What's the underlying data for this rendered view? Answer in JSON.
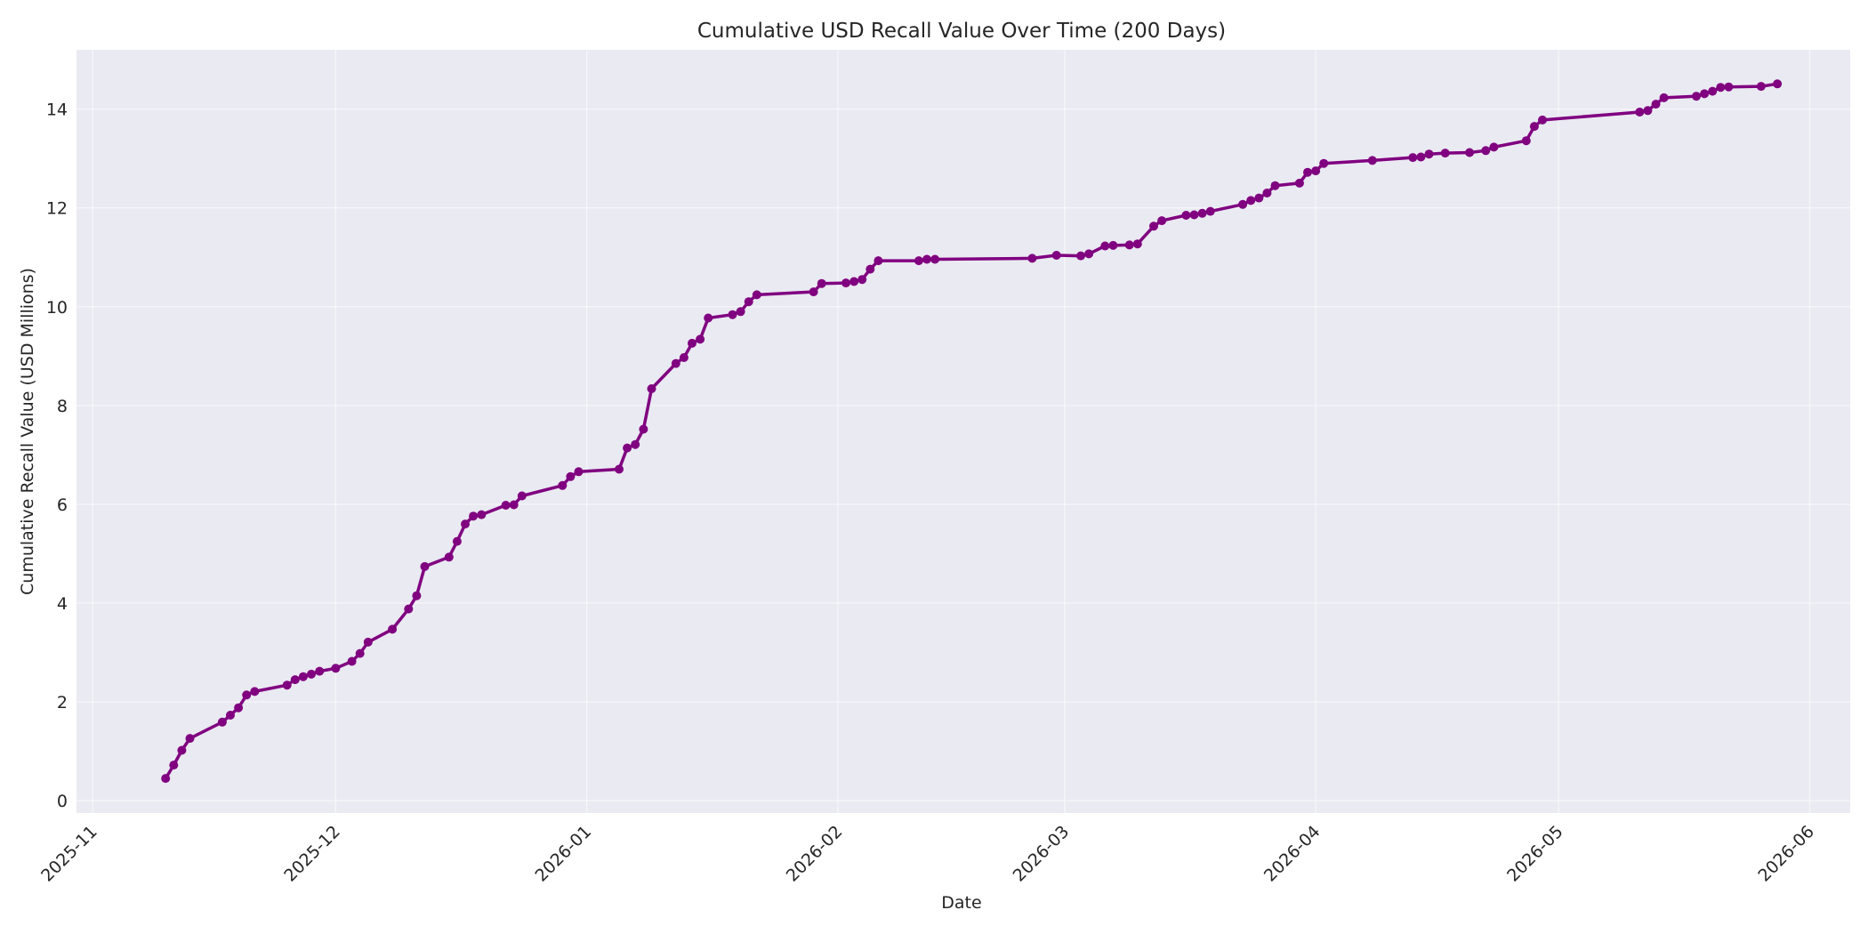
{
  "chart_data": {
    "type": "line",
    "title": "Cumulative USD Recall Value Over Time (200 Days)",
    "xlabel": "Date",
    "ylabel": "Cumulative Recall Value (USD Millions)",
    "grid": true,
    "colors": {
      "series": "#800080",
      "plot_background": "#eaeaf2",
      "grid": "#ffffff",
      "text": "#262626"
    },
    "xlim": [
      "2025-10-30",
      "2026-06-06"
    ],
    "ylim": [
      -0.25,
      15.2
    ],
    "x_ticks": [
      "2025-11",
      "2025-12",
      "2026-01",
      "2026-02",
      "2026-03",
      "2026-04",
      "2026-05",
      "2026-06"
    ],
    "y_ticks": [
      0,
      2,
      4,
      6,
      8,
      10,
      12,
      14
    ],
    "series": [
      {
        "x": [
          "2025-11-10",
          "2025-11-11",
          "2025-11-12",
          "2025-11-13",
          "2025-11-17",
          "2025-11-18",
          "2025-11-19",
          "2025-11-20",
          "2025-11-21",
          "2025-11-25",
          "2025-11-26",
          "2025-11-27",
          "2025-11-28",
          "2025-11-29",
          "2025-12-01",
          "2025-12-03",
          "2025-12-04",
          "2025-12-05",
          "2025-12-08",
          "2025-12-10",
          "2025-12-11",
          "2025-12-12",
          "2025-12-15",
          "2025-12-16",
          "2025-12-17",
          "2025-12-18",
          "2025-12-19",
          "2025-12-22",
          "2025-12-23",
          "2025-12-24",
          "2025-12-29",
          "2025-12-30",
          "2025-12-31",
          "2026-01-05",
          "2026-01-06",
          "2026-01-07",
          "2026-01-08",
          "2026-01-09",
          "2026-01-12",
          "2026-01-13",
          "2026-01-14",
          "2026-01-15",
          "2026-01-16",
          "2026-01-19",
          "2026-01-20",
          "2026-01-21",
          "2026-01-22",
          "2026-01-29",
          "2026-01-30",
          "2026-02-02",
          "2026-02-03",
          "2026-02-04",
          "2026-02-05",
          "2026-02-06",
          "2026-02-11",
          "2026-02-12",
          "2026-02-13",
          "2026-02-25",
          "2026-02-28",
          "2026-03-03",
          "2026-03-04",
          "2026-03-06",
          "2026-03-07",
          "2026-03-09",
          "2026-03-10",
          "2026-03-12",
          "2026-03-13",
          "2026-03-16",
          "2026-03-17",
          "2026-03-18",
          "2026-03-19",
          "2026-03-23",
          "2026-03-24",
          "2026-03-25",
          "2026-03-26",
          "2026-03-27",
          "2026-03-30",
          "2026-03-31",
          "2026-04-01",
          "2026-04-02",
          "2026-04-08",
          "2026-04-13",
          "2026-04-14",
          "2026-04-15",
          "2026-04-17",
          "2026-04-20",
          "2026-04-22",
          "2026-04-23",
          "2026-04-27",
          "2026-04-28",
          "2026-04-29",
          "2026-05-11",
          "2026-05-12",
          "2026-05-13",
          "2026-05-14",
          "2026-05-18",
          "2026-05-19",
          "2026-05-20",
          "2026-05-21",
          "2026-05-22",
          "2026-05-26",
          "2026-05-28"
        ],
        "values": [
          0.45,
          0.72,
          1.02,
          1.26,
          1.59,
          1.73,
          1.88,
          2.14,
          2.21,
          2.34,
          2.45,
          2.51,
          2.56,
          2.62,
          2.68,
          2.82,
          2.98,
          3.21,
          3.47,
          3.88,
          4.15,
          4.74,
          4.93,
          5.25,
          5.6,
          5.76,
          5.79,
          5.98,
          5.99,
          6.17,
          6.38,
          6.56,
          6.66,
          6.71,
          7.14,
          7.21,
          7.52,
          8.34,
          8.85,
          8.97,
          9.26,
          9.34,
          9.77,
          9.84,
          9.9,
          10.1,
          10.24,
          10.3,
          10.47,
          10.48,
          10.51,
          10.55,
          10.76,
          10.93,
          10.93,
          10.96,
          10.96,
          10.98,
          11.04,
          11.03,
          11.07,
          11.23,
          11.24,
          11.25,
          11.27,
          11.63,
          11.74,
          11.85,
          11.86,
          11.89,
          11.93,
          12.07,
          12.15,
          12.2,
          12.3,
          12.45,
          12.5,
          12.72,
          12.75,
          12.9,
          12.96,
          13.02,
          13.03,
          13.09,
          13.11,
          13.12,
          13.16,
          13.23,
          13.36,
          13.65,
          13.78,
          13.94,
          13.97,
          14.1,
          14.23,
          14.26,
          14.31,
          14.36,
          14.44,
          14.45,
          14.46,
          14.51
        ]
      }
    ]
  }
}
